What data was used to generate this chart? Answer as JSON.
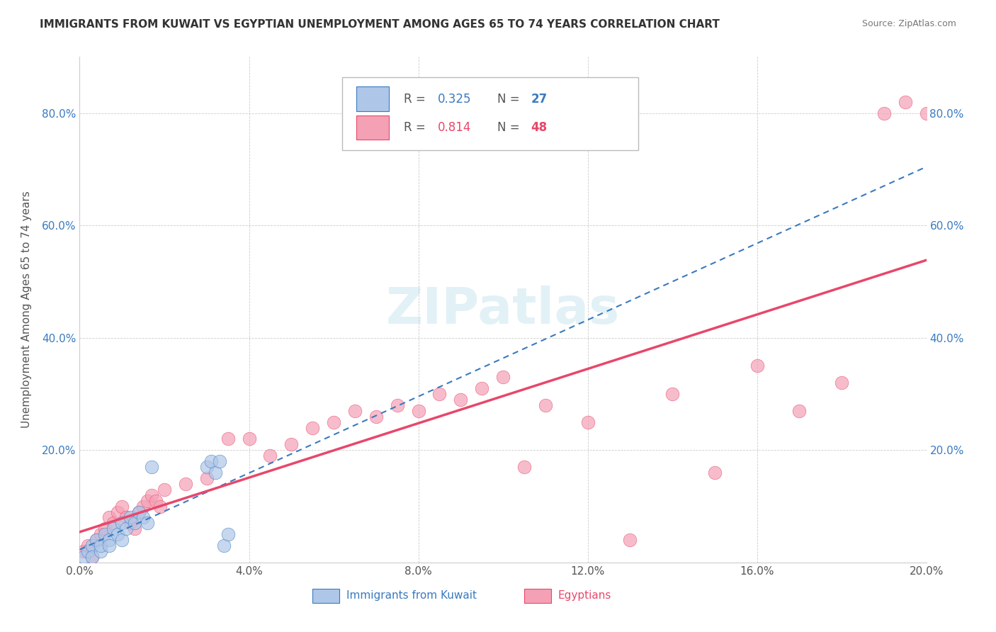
{
  "title": "IMMIGRANTS FROM KUWAIT VS EGYPTIAN UNEMPLOYMENT AMONG AGES 65 TO 74 YEARS CORRELATION CHART",
  "source": "Source: ZipAtlas.com",
  "xlabel": "",
  "ylabel": "Unemployment Among Ages 65 to 74 years",
  "xlim": [
    0.0,
    0.2
  ],
  "ylim": [
    0.0,
    0.9
  ],
  "xticks": [
    0.0,
    0.04,
    0.08,
    0.12,
    0.16,
    0.2
  ],
  "yticks": [
    0.0,
    0.2,
    0.4,
    0.6,
    0.8
  ],
  "ytick_labels": [
    "",
    "20.0%",
    "40.0%",
    "60.0%",
    "80.0%"
  ],
  "xtick_labels": [
    "0.0%",
    "4.0%",
    "8.0%",
    "12.0%",
    "16.0%",
    "20.0%"
  ],
  "watermark": "ZIPatlas",
  "kuwait_color": "#aec6e8",
  "egypt_color": "#f4a0b5",
  "kuwait_line_color": "#3a7abf",
  "egypt_line_color": "#e8476a",
  "kuwait_R": 0.325,
  "kuwait_N": 27,
  "egypt_R": 0.814,
  "egypt_N": 48,
  "kuwait_scatter_x": [
    0.001,
    0.002,
    0.003,
    0.003,
    0.004,
    0.005,
    0.005,
    0.006,
    0.007,
    0.007,
    0.008,
    0.009,
    0.01,
    0.01,
    0.011,
    0.012,
    0.013,
    0.014,
    0.015,
    0.016,
    0.017,
    0.03,
    0.031,
    0.032,
    0.033,
    0.034,
    0.035
  ],
  "kuwait_scatter_y": [
    0.01,
    0.02,
    0.03,
    0.01,
    0.04,
    0.02,
    0.03,
    0.05,
    0.04,
    0.03,
    0.06,
    0.05,
    0.07,
    0.04,
    0.06,
    0.08,
    0.07,
    0.09,
    0.08,
    0.07,
    0.17,
    0.17,
    0.18,
    0.16,
    0.18,
    0.03,
    0.05
  ],
  "egypt_scatter_x": [
    0.001,
    0.002,
    0.003,
    0.004,
    0.005,
    0.006,
    0.007,
    0.008,
    0.009,
    0.01,
    0.011,
    0.012,
    0.013,
    0.014,
    0.015,
    0.016,
    0.017,
    0.018,
    0.019,
    0.02,
    0.025,
    0.03,
    0.035,
    0.04,
    0.045,
    0.05,
    0.055,
    0.06,
    0.065,
    0.07,
    0.075,
    0.08,
    0.085,
    0.09,
    0.095,
    0.1,
    0.11,
    0.12,
    0.13,
    0.14,
    0.15,
    0.16,
    0.17,
    0.18,
    0.19,
    0.195,
    0.2,
    0.105
  ],
  "egypt_scatter_y": [
    0.02,
    0.03,
    0.01,
    0.04,
    0.05,
    0.06,
    0.08,
    0.07,
    0.09,
    0.1,
    0.08,
    0.07,
    0.06,
    0.09,
    0.1,
    0.11,
    0.12,
    0.11,
    0.1,
    0.13,
    0.14,
    0.15,
    0.22,
    0.22,
    0.19,
    0.21,
    0.24,
    0.25,
    0.27,
    0.26,
    0.28,
    0.27,
    0.3,
    0.29,
    0.31,
    0.33,
    0.28,
    0.25,
    0.04,
    0.3,
    0.16,
    0.35,
    0.27,
    0.32,
    0.8,
    0.82,
    0.8,
    0.17
  ]
}
